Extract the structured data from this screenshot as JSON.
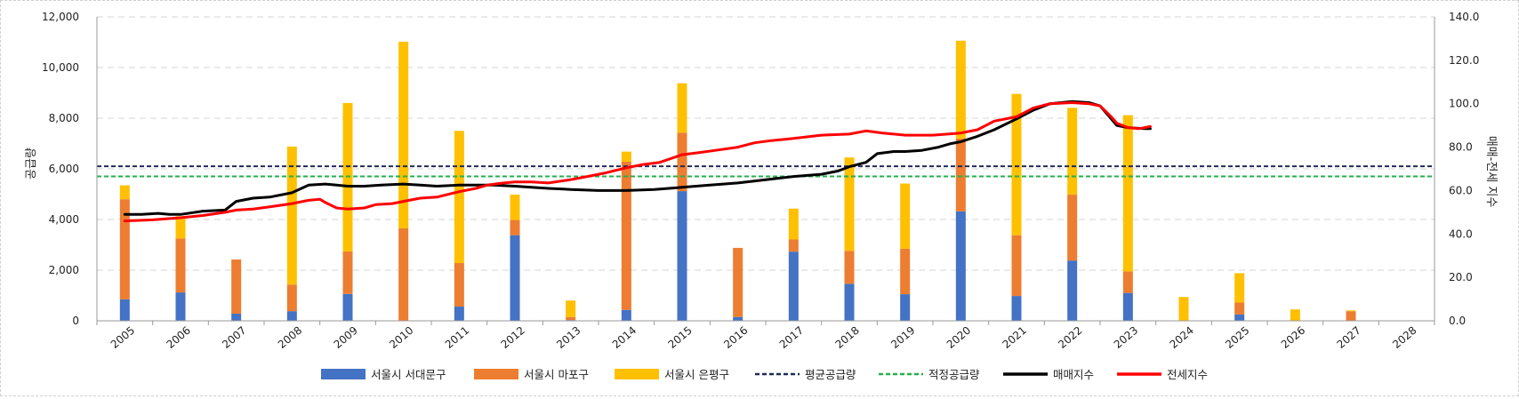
{
  "chart_data": {
    "type": "bar",
    "stacked": true,
    "categories": [
      "2005",
      "2006",
      "2007",
      "2008",
      "2009",
      "2010",
      "2011",
      "2012",
      "2013",
      "2014",
      "2015",
      "2016",
      "2017",
      "2018",
      "2019",
      "2020",
      "2021",
      "2022",
      "2023",
      "2024",
      "2025",
      "2026",
      "2027",
      "2028"
    ],
    "series": [
      {
        "name": "서울시 서대문구",
        "color": "#4472C4",
        "values": [
          850,
          1120,
          280,
          380,
          1060,
          0,
          560,
          3380,
          30,
          430,
          5120,
          150,
          2730,
          1460,
          1050,
          4320,
          980,
          2380,
          1100,
          0,
          250,
          0,
          0,
          0
        ]
      },
      {
        "name": "서울시 마포구",
        "color": "#ED7D31",
        "values": [
          3950,
          2130,
          2140,
          1050,
          1680,
          3650,
          1720,
          600,
          120,
          5850,
          2310,
          2730,
          480,
          1300,
          1800,
          2880,
          2400,
          2600,
          850,
          0,
          470,
          0,
          380,
          0
        ]
      },
      {
        "name": "서울시 은평구",
        "color": "#FFC000",
        "values": [
          550,
          880,
          0,
          5450,
          5860,
          7370,
          5220,
          1000,
          650,
          400,
          1950,
          0,
          1220,
          3690,
          2570,
          3860,
          5580,
          3430,
          6170,
          940,
          1160,
          450,
          30,
          0
        ]
      }
    ],
    "reference_lines": [
      {
        "name": "평균공급량",
        "value": 6100,
        "color": "#1F2A5C",
        "style": "dashed"
      },
      {
        "name": "적정공급량",
        "value": 5700,
        "color": "#22B14C",
        "style": "dashed"
      }
    ],
    "lines": [
      {
        "name": "매매지수",
        "color": "#000000",
        "axis": "right",
        "points": [
          [
            2005,
            49
          ],
          [
            2005.3,
            49
          ],
          [
            2005.6,
            49.5
          ],
          [
            2005.8,
            49
          ],
          [
            2006,
            49
          ],
          [
            2006.4,
            50.5
          ],
          [
            2006.8,
            51
          ],
          [
            2007,
            55
          ],
          [
            2007.3,
            56.5
          ],
          [
            2007.6,
            57
          ],
          [
            2008,
            59
          ],
          [
            2008.3,
            62.5
          ],
          [
            2008.6,
            63
          ],
          [
            2008.8,
            62.5
          ],
          [
            2009,
            62
          ],
          [
            2009.3,
            62
          ],
          [
            2009.6,
            62.5
          ],
          [
            2010,
            63
          ],
          [
            2010.3,
            62.5
          ],
          [
            2010.6,
            62
          ],
          [
            2011,
            62.5
          ],
          [
            2011.3,
            62.5
          ],
          [
            2011.6,
            62.5
          ],
          [
            2012,
            62
          ],
          [
            2012.3,
            61.5
          ],
          [
            2012.6,
            61
          ],
          [
            2013,
            60.5
          ],
          [
            2013.5,
            60
          ],
          [
            2014,
            60
          ],
          [
            2014.5,
            60.5
          ],
          [
            2015,
            61.5
          ],
          [
            2015.5,
            62.5
          ],
          [
            2016,
            63.5
          ],
          [
            2016.5,
            65
          ],
          [
            2017,
            66.5
          ],
          [
            2017.5,
            67.5
          ],
          [
            2017.8,
            69
          ],
          [
            2018,
            71
          ],
          [
            2018.3,
            73
          ],
          [
            2018.5,
            77
          ],
          [
            2018.8,
            78
          ],
          [
            2019,
            78
          ],
          [
            2019.3,
            78.5
          ],
          [
            2019.6,
            80
          ],
          [
            2019.8,
            81.5
          ],
          [
            2020,
            82.5
          ],
          [
            2020.3,
            85
          ],
          [
            2020.6,
            88
          ],
          [
            2021,
            93
          ],
          [
            2021.3,
            97
          ],
          [
            2021.6,
            100
          ],
          [
            2021.8,
            100.5
          ],
          [
            2022,
            101
          ],
          [
            2022.3,
            100.5
          ],
          [
            2022.5,
            99
          ],
          [
            2022.7,
            93
          ],
          [
            2022.8,
            90
          ],
          [
            2023,
            89
          ],
          [
            2023.3,
            88.5
          ],
          [
            2023.4,
            88.5
          ]
        ]
      },
      {
        "name": "전세지수",
        "color": "#FF0000",
        "axis": "right",
        "points": [
          [
            2005,
            46
          ],
          [
            2005.5,
            46.5
          ],
          [
            2006,
            47.5
          ],
          [
            2006.4,
            48.5
          ],
          [
            2006.8,
            50
          ],
          [
            2007,
            51
          ],
          [
            2007.3,
            51.5
          ],
          [
            2007.6,
            52.5
          ],
          [
            2008,
            54
          ],
          [
            2008.3,
            55.5
          ],
          [
            2008.5,
            56
          ],
          [
            2008.6,
            54.5
          ],
          [
            2008.8,
            52
          ],
          [
            2009,
            51.5
          ],
          [
            2009.3,
            52
          ],
          [
            2009.5,
            53.5
          ],
          [
            2009.8,
            54
          ],
          [
            2010,
            55
          ],
          [
            2010.3,
            56.5
          ],
          [
            2010.6,
            57
          ],
          [
            2011,
            59.5
          ],
          [
            2011.3,
            61
          ],
          [
            2011.5,
            62.5
          ],
          [
            2011.8,
            63.5
          ],
          [
            2012,
            64
          ],
          [
            2012.3,
            64
          ],
          [
            2012.6,
            63.5
          ],
          [
            2013,
            65
          ],
          [
            2013.3,
            66.5
          ],
          [
            2013.6,
            68
          ],
          [
            2014,
            70.5
          ],
          [
            2014.3,
            72
          ],
          [
            2014.6,
            73
          ],
          [
            2015,
            76.5
          ],
          [
            2015.3,
            77.5
          ],
          [
            2015.6,
            78.5
          ],
          [
            2016,
            80
          ],
          [
            2016.3,
            82
          ],
          [
            2016.6,
            83
          ],
          [
            2017,
            84
          ],
          [
            2017.5,
            85.5
          ],
          [
            2018,
            86
          ],
          [
            2018.3,
            87.5
          ],
          [
            2018.6,
            86.5
          ],
          [
            2019,
            85.5
          ],
          [
            2019.5,
            85.5
          ],
          [
            2020,
            86.5
          ],
          [
            2020.3,
            88
          ],
          [
            2020.6,
            92
          ],
          [
            2021,
            94
          ],
          [
            2021.3,
            98
          ],
          [
            2021.6,
            100
          ],
          [
            2022,
            100.5
          ],
          [
            2022.3,
            100
          ],
          [
            2022.5,
            99
          ],
          [
            2022.7,
            94
          ],
          [
            2022.8,
            91
          ],
          [
            2023,
            89
          ],
          [
            2023.2,
            88.5
          ],
          [
            2023.4,
            89.5
          ]
        ]
      }
    ],
    "ylim_left": [
      0,
      12000
    ],
    "ylim_right": [
      0,
      140
    ],
    "left_ticks": [
      "0",
      "2,000",
      "4,000",
      "6,000",
      "8,000",
      "10,000",
      "12,000"
    ],
    "right_ticks": [
      "0.0",
      "20.0",
      "40.0",
      "60.0",
      "80.0",
      "100.0",
      "120.0",
      "140.0"
    ],
    "ylabel_left": "공급량",
    "ylabel_right": "매매-전세 지수",
    "xlabel": "",
    "grid": true,
    "legend_position": "bottom"
  }
}
